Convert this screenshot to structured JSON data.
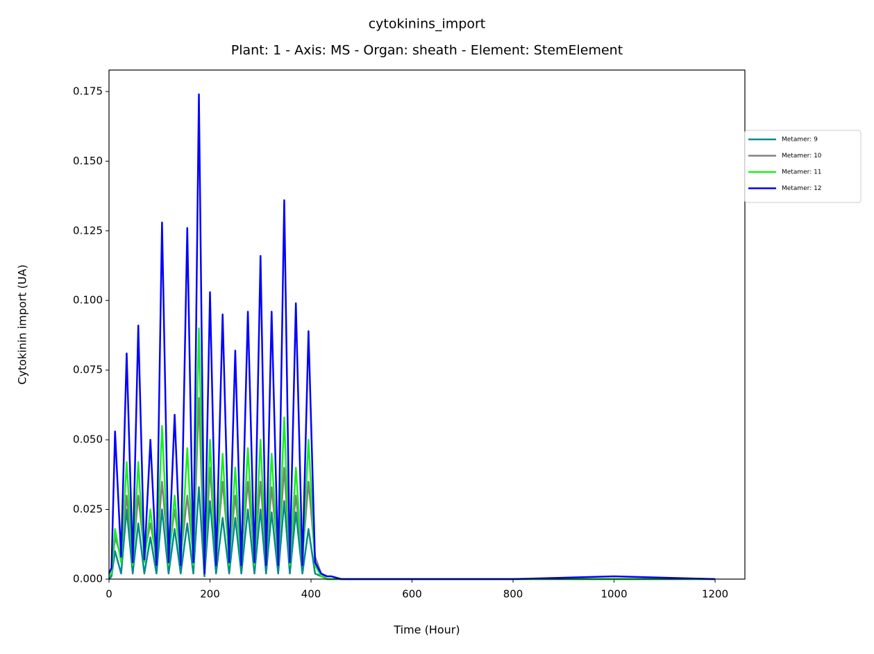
{
  "chart_data": {
    "type": "line",
    "title": "cytokinins_import",
    "subtitle": "Plant: 1 - Axis: MS - Organ: sheath - Element: StemElement",
    "x_label": "Time (Hour)",
    "y_label": "Cytokinin import (UA)",
    "x": [
      0,
      5,
      12,
      24,
      35,
      47,
      58,
      70,
      82,
      94,
      105,
      118,
      130,
      142,
      155,
      167,
      178,
      189,
      200,
      212,
      225,
      238,
      250,
      262,
      275,
      288,
      300,
      311,
      322,
      335,
      347,
      358,
      370,
      383,
      395,
      408,
      420,
      432,
      440,
      460,
      600,
      800,
      1000,
      1200
    ],
    "series": [
      {
        "name": "Metamer: 9",
        "color": "#008b8b",
        "values": [
          0,
          0.001,
          0.01,
          0.002,
          0.025,
          0.002,
          0.02,
          0.002,
          0.015,
          0.002,
          0.025,
          0.002,
          0.018,
          0.002,
          0.02,
          0.002,
          0.033,
          0.001,
          0.028,
          0.002,
          0.022,
          0.002,
          0.022,
          0.002,
          0.025,
          0.002,
          0.025,
          0.002,
          0.024,
          0.002,
          0.028,
          0.002,
          0.024,
          0.002,
          0.018,
          0.002,
          0.001,
          0,
          0,
          0,
          0,
          0,
          0,
          0
        ]
      },
      {
        "name": "Metamer: 10",
        "color": "#808080",
        "values": [
          0.001,
          0.002,
          0.015,
          0.008,
          0.03,
          0.008,
          0.03,
          0.009,
          0.02,
          0.008,
          0.035,
          0.008,
          0.025,
          0.008,
          0.03,
          0.008,
          0.065,
          0.003,
          0.04,
          0.008,
          0.035,
          0.008,
          0.03,
          0.008,
          0.035,
          0.008,
          0.035,
          0.008,
          0.033,
          0.008,
          0.04,
          0.008,
          0.03,
          0.008,
          0.035,
          0.008,
          0.002,
          0,
          0,
          0,
          0,
          0,
          0,
          0
        ]
      },
      {
        "name": "Metamer: 11",
        "color": "#19f019",
        "values": [
          0.001,
          0.002,
          0.018,
          0.006,
          0.042,
          0.005,
          0.042,
          0.006,
          0.025,
          0.005,
          0.055,
          0.005,
          0.03,
          0.005,
          0.047,
          0.005,
          0.09,
          0.002,
          0.05,
          0.005,
          0.045,
          0.005,
          0.04,
          0.005,
          0.047,
          0.005,
          0.05,
          0.005,
          0.045,
          0.005,
          0.058,
          0.005,
          0.04,
          0.005,
          0.05,
          0.005,
          0.001,
          0,
          0,
          0,
          0,
          0,
          0,
          0
        ]
      },
      {
        "name": "Metamer: 12",
        "color": "#0000ff",
        "values": [
          0.002,
          0.004,
          0.053,
          0.008,
          0.081,
          0.006,
          0.091,
          0.007,
          0.05,
          0.005,
          0.128,
          0.006,
          0.059,
          0.005,
          0.126,
          0.006,
          0.174,
          0.002,
          0.103,
          0.005,
          0.095,
          0.006,
          0.082,
          0.005,
          0.096,
          0.006,
          0.116,
          0.005,
          0.096,
          0.005,
          0.136,
          0.006,
          0.099,
          0.005,
          0.089,
          0.006,
          0.002,
          0.001,
          0.001,
          0,
          0,
          0,
          0.001,
          0
        ]
      }
    ],
    "xlim": [
      0,
      1259
    ],
    "ylim": [
      0,
      0.1827
    ],
    "xticks": [
      0,
      200,
      400,
      600,
      800,
      1000,
      1200
    ],
    "yticks": [
      {
        "value": 0,
        "label": "0.000"
      },
      0.025,
      {
        "value": 0.05,
        "label": "0.050"
      },
      0.075,
      {
        "value": 0.1,
        "label": "0.100"
      },
      0.125,
      {
        "value": 0.15,
        "label": "0.150"
      },
      0.175
    ],
    "grid": false,
    "legend": "outside-right"
  }
}
